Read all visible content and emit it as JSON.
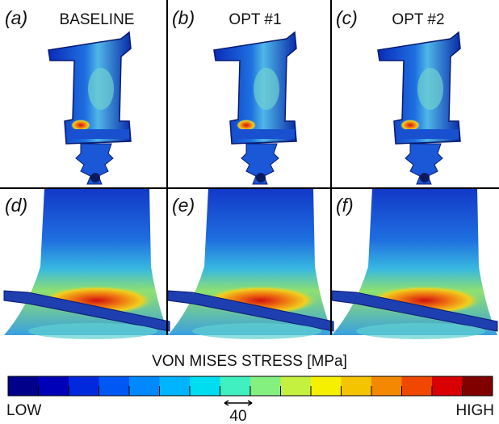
{
  "panels": [
    {
      "label": "(a)",
      "title": "BASELINE"
    },
    {
      "label": "(b)",
      "title": "OPT #1"
    },
    {
      "label": "(c)",
      "title": "OPT #2"
    },
    {
      "label": "(d)"
    },
    {
      "label": "(e)"
    },
    {
      "label": "(f)"
    }
  ],
  "colorbar": {
    "title": "VON MISES STRESS [MPa]",
    "low": "LOW",
    "high": "HIGH",
    "scale_label": 40
  }
}
